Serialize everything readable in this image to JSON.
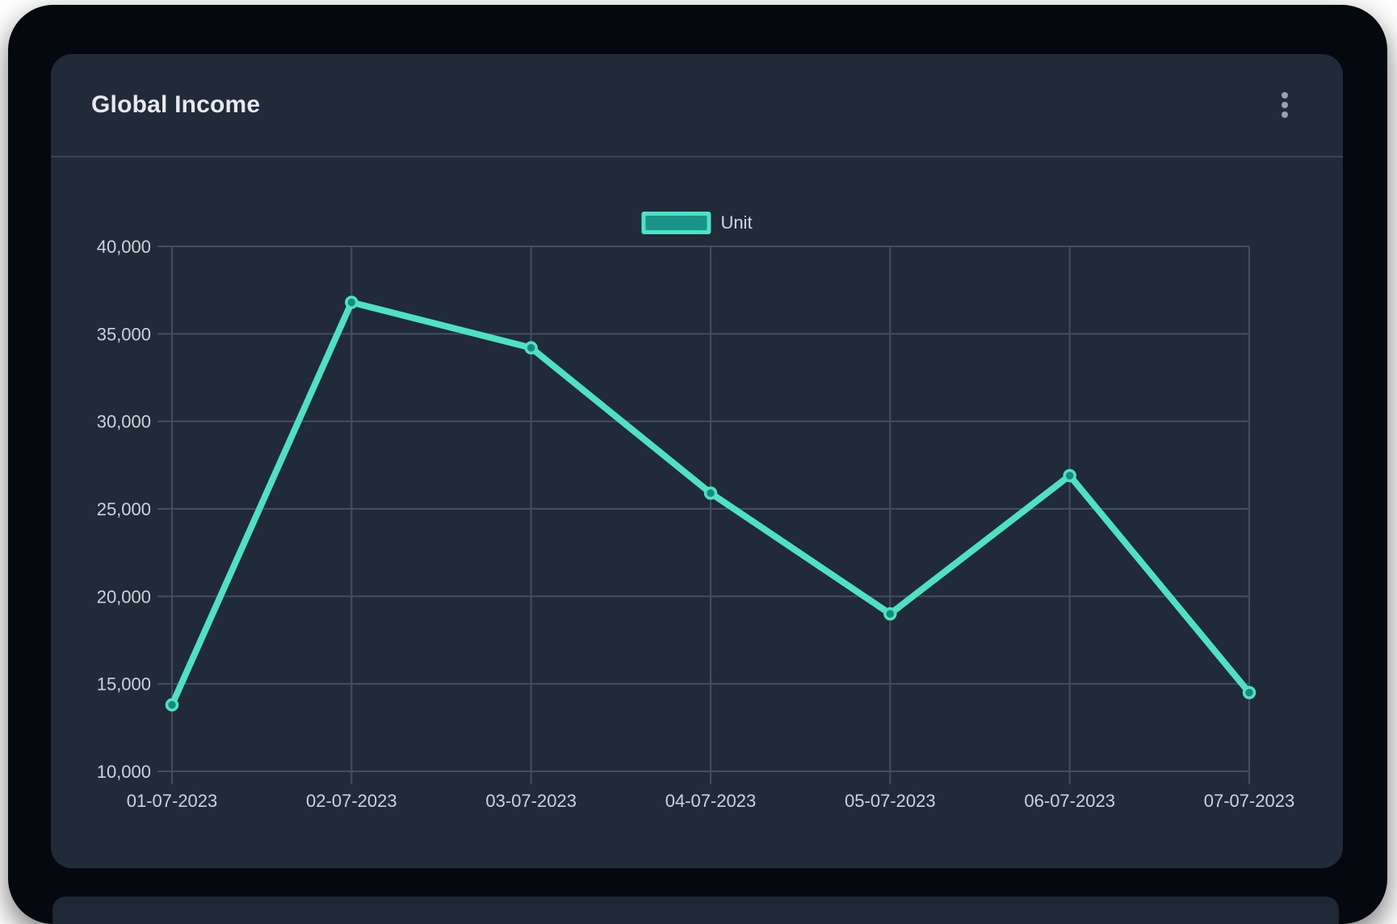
{
  "card": {
    "title": "Global Income",
    "menu_icon": "kebab-menu-icon"
  },
  "chart_data": {
    "type": "line",
    "categories": [
      "01-07-2023",
      "02-07-2023",
      "03-07-2023",
      "04-07-2023",
      "05-07-2023",
      "06-07-2023",
      "07-07-2023"
    ],
    "series": [
      {
        "name": "Unit",
        "values": [
          13800,
          36800,
          34200,
          25900,
          19000,
          26900,
          14500
        ]
      }
    ],
    "ylim": [
      10000,
      40000
    ],
    "ytick_step": 5000,
    "ytick_labels": [
      "10,000",
      "15,000",
      "20,000",
      "25,000",
      "30,000",
      "35,000",
      "40,000"
    ],
    "grid": true,
    "legend_position": "top-center",
    "colors": {
      "line": "#4EE1C5",
      "marker_fill": "#17897F",
      "legend_fill": "#1A938A",
      "grid": "#454E5E",
      "axis_text": "#CED3DA"
    }
  },
  "theme": {
    "page_bg": "#FFFFFF",
    "window_bg": "#05080F",
    "card_bg": "#212A38",
    "bottom_card_bg": "#1E2734",
    "divider": "#3A4351",
    "title_color": "#E6E9ED",
    "icon_color": "#9BA1AC"
  }
}
